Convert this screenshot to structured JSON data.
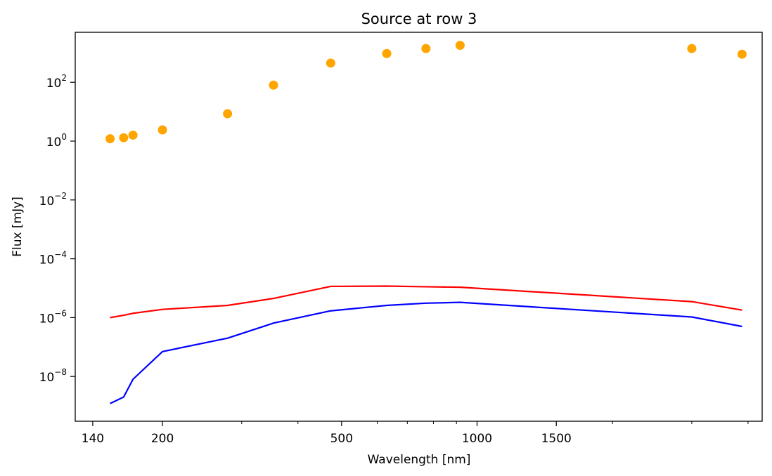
{
  "chart_data": {
    "type": "scatter",
    "title": "Source at row 3",
    "xlabel": "Wavelength [nm]",
    "ylabel": "Flux [mJy]",
    "x_scale": "log",
    "y_scale": "log",
    "xlim": [
      128,
      4300
    ],
    "ylim": [
      3e-10,
      5000
    ],
    "grid": false,
    "x_ticks": [
      {
        "value": 140,
        "label": "140"
      },
      {
        "value": 200,
        "label": "200"
      },
      {
        "value": 500,
        "label": "500"
      },
      {
        "value": 1000,
        "label": "1000"
      },
      {
        "value": 1500,
        "label": "1500"
      }
    ],
    "x_minor_ticks": [
      300,
      400,
      600,
      700,
      800,
      900,
      2000,
      3000,
      4000
    ],
    "y_ticks": [
      {
        "value": 1e-08,
        "base": "10",
        "exp": "−8"
      },
      {
        "value": 1e-06,
        "base": "10",
        "exp": "−6"
      },
      {
        "value": 0.0001,
        "base": "10",
        "exp": "−4"
      },
      {
        "value": 0.01,
        "base": "10",
        "exp": "−2"
      },
      {
        "value": 1,
        "base": "10",
        "exp": "0"
      },
      {
        "value": 100,
        "base": "10",
        "exp": "2"
      }
    ],
    "series": [
      {
        "kind": "scatter",
        "color": "#ffa500",
        "points": [
          [
            153,
            1.2
          ],
          [
            164,
            1.3
          ],
          [
            172,
            1.6
          ],
          [
            200,
            2.4
          ],
          [
            279,
            8.5
          ],
          [
            353,
            80
          ],
          [
            473,
            450
          ],
          [
            630,
            950
          ],
          [
            770,
            1400
          ],
          [
            917,
            1800
          ],
          [
            3000,
            1400
          ],
          [
            3880,
            900
          ]
        ]
      },
      {
        "kind": "line",
        "color": "#ff0000",
        "points": [
          [
            153,
            1e-06
          ],
          [
            164,
            1.2e-06
          ],
          [
            172,
            1.4e-06
          ],
          [
            200,
            1.9e-06
          ],
          [
            279,
            2.6e-06
          ],
          [
            353,
            4.5e-06
          ],
          [
            473,
            1.15e-05
          ],
          [
            630,
            1.18e-05
          ],
          [
            770,
            1.12e-05
          ],
          [
            917,
            1.08e-05
          ],
          [
            3000,
            3.5e-06
          ],
          [
            3880,
            1.8e-06
          ]
        ]
      },
      {
        "kind": "line",
        "color": "#0000ff",
        "points": [
          [
            153,
            1.2e-09
          ],
          [
            164,
            2e-09
          ],
          [
            172,
            8e-09
          ],
          [
            200,
            7e-08
          ],
          [
            279,
            2e-07
          ],
          [
            353,
            6.5e-07
          ],
          [
            473,
            1.7e-06
          ],
          [
            630,
            2.6e-06
          ],
          [
            770,
            3.1e-06
          ],
          [
            917,
            3.3e-06
          ],
          [
            3000,
            1.05e-06
          ],
          [
            3880,
            5e-07
          ]
        ]
      }
    ]
  }
}
